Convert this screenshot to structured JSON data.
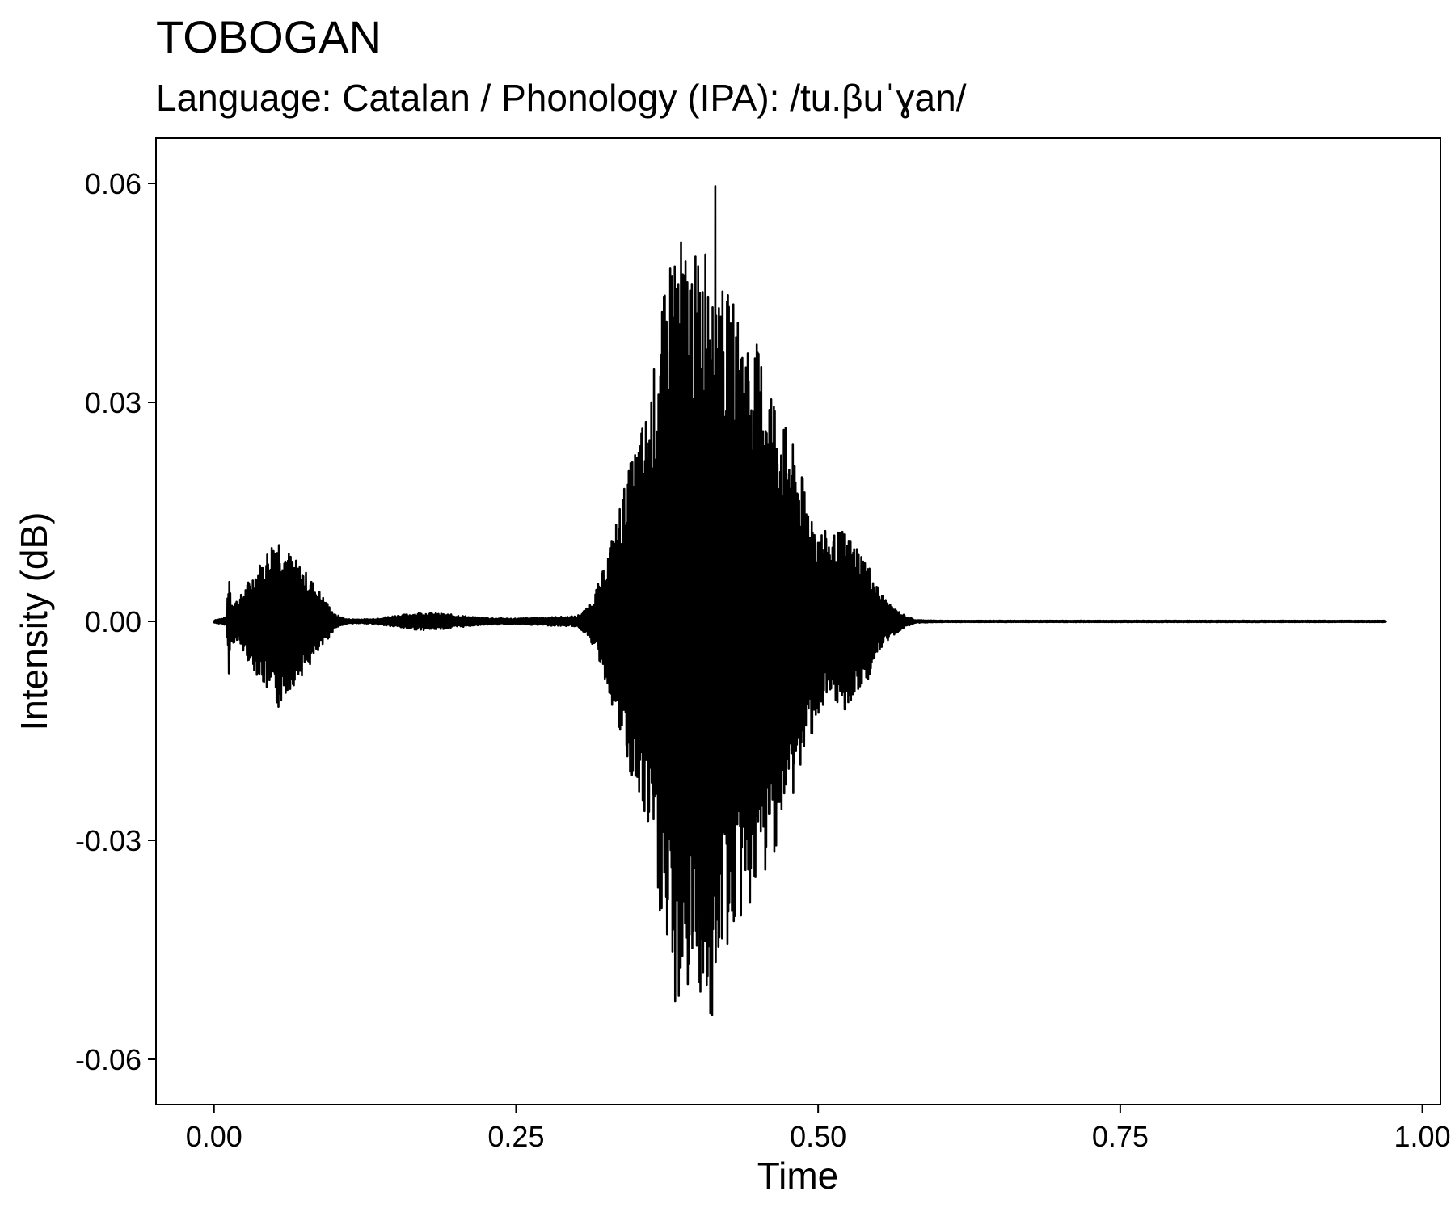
{
  "chart_data": {
    "type": "line",
    "title": "TOBOGAN",
    "subtitle": "Language: Catalan / Phonology (IPA): /tu.βuˈɣan/",
    "xlabel": "Time",
    "ylabel": "Intensity (dB)",
    "xlim": [
      -0.048,
      1.015
    ],
    "ylim": [
      -0.0662,
      0.0662
    ],
    "x_ticks": [
      0.0,
      0.25,
      0.5,
      0.75,
      1.0
    ],
    "x_tick_labels": [
      "0.00",
      "0.25",
      "0.50",
      "0.75",
      "1.00"
    ],
    "y_ticks": [
      -0.06,
      -0.03,
      0.0,
      0.03,
      0.06
    ],
    "y_tick_labels": [
      "-0.06",
      "-0.03",
      "0.00",
      "0.03",
      "0.06"
    ],
    "grid": false,
    "series": [
      {
        "color": "#000000",
        "x": [
          0.0,
          0.01,
          0.0115,
          0.0125,
          0.014,
          0.02,
          0.03,
          0.04,
          0.052,
          0.06,
          0.07,
          0.08,
          0.09,
          0.1,
          0.11,
          0.13,
          0.15,
          0.17,
          0.18,
          0.2,
          0.22,
          0.25,
          0.28,
          0.3,
          0.31,
          0.32,
          0.33,
          0.34,
          0.35,
          0.36,
          0.37,
          0.38,
          0.39,
          0.4,
          0.41,
          0.415,
          0.42,
          0.43,
          0.44,
          0.45,
          0.46,
          0.47,
          0.48,
          0.49,
          0.5,
          0.51,
          0.52,
          0.53,
          0.54,
          0.55,
          0.56,
          0.57,
          0.58,
          0.6,
          0.7,
          0.8,
          0.9,
          0.97
        ],
        "envelope": [
          0.0002,
          0.0005,
          0.0045,
          0.0078,
          0.003,
          0.003,
          0.006,
          0.0085,
          0.0125,
          0.01,
          0.008,
          0.006,
          0.0035,
          0.001,
          0.0003,
          0.0003,
          0.0008,
          0.0012,
          0.0012,
          0.0009,
          0.0005,
          0.0004,
          0.0006,
          0.0007,
          0.002,
          0.006,
          0.012,
          0.019,
          0.025,
          0.03,
          0.042,
          0.054,
          0.052,
          0.05,
          0.055,
          0.0603,
          0.046,
          0.044,
          0.04,
          0.038,
          0.034,
          0.028,
          0.024,
          0.018,
          0.013,
          0.012,
          0.0125,
          0.011,
          0.0085,
          0.0045,
          0.0022,
          0.001,
          0.0002,
          0.0001,
          0.0001,
          0.0001,
          0.0001,
          0.0001
        ]
      }
    ]
  }
}
